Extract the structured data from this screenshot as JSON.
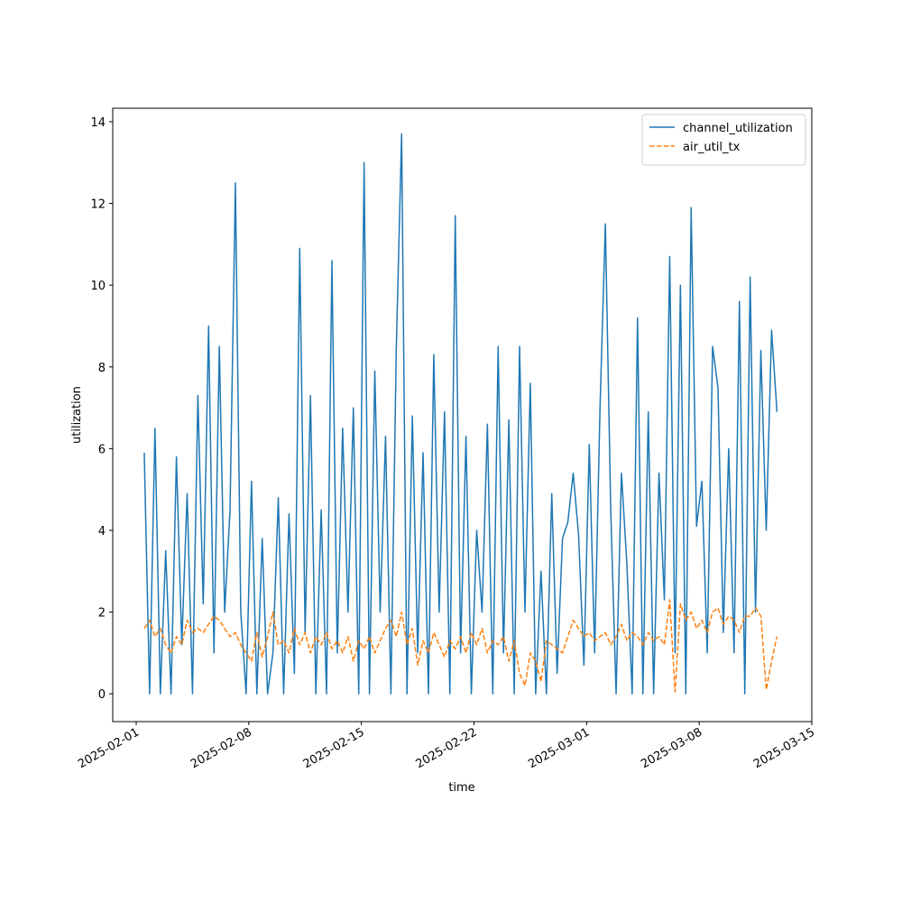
{
  "chart_data": {
    "type": "line",
    "x_label": "time",
    "y_label": "utilization",
    "x": [
      "2025-02-01T12:00",
      "2025-02-01T20:00",
      "2025-02-02T04:00",
      "2025-02-02T12:00",
      "2025-02-02T20:00",
      "2025-02-03T04:00",
      "2025-02-03T12:00",
      "2025-02-03T20:00",
      "2025-02-04T04:00",
      "2025-02-04T12:00",
      "2025-02-04T20:00",
      "2025-02-05T04:00",
      "2025-02-05T12:00",
      "2025-02-05T20:00",
      "2025-02-06T04:00",
      "2025-02-06T12:00",
      "2025-02-06T20:00",
      "2025-02-07T04:00",
      "2025-02-07T12:00",
      "2025-02-07T20:00",
      "2025-02-08T04:00",
      "2025-02-08T12:00",
      "2025-02-08T20:00",
      "2025-02-09T04:00",
      "2025-02-09T12:00",
      "2025-02-09T20:00",
      "2025-02-10T04:00",
      "2025-02-10T12:00",
      "2025-02-10T20:00",
      "2025-02-11T04:00",
      "2025-02-11T12:00",
      "2025-02-11T20:00",
      "2025-02-12T04:00",
      "2025-02-12T12:00",
      "2025-02-12T20:00",
      "2025-02-13T04:00",
      "2025-02-13T12:00",
      "2025-02-13T20:00",
      "2025-02-14T04:00",
      "2025-02-14T12:00",
      "2025-02-14T20:00",
      "2025-02-15T04:00",
      "2025-02-15T12:00",
      "2025-02-15T20:00",
      "2025-02-16T04:00",
      "2025-02-16T12:00",
      "2025-02-16T20:00",
      "2025-02-17T04:00",
      "2025-02-17T12:00",
      "2025-02-17T20:00",
      "2025-02-18T04:00",
      "2025-02-18T12:00",
      "2025-02-18T20:00",
      "2025-02-19T04:00",
      "2025-02-19T12:00",
      "2025-02-19T20:00",
      "2025-02-20T04:00",
      "2025-02-20T12:00",
      "2025-02-20T20:00",
      "2025-02-21T04:00",
      "2025-02-21T12:00",
      "2025-02-21T20:00",
      "2025-02-22T04:00",
      "2025-02-22T12:00",
      "2025-02-22T20:00",
      "2025-02-23T04:00",
      "2025-02-23T12:00",
      "2025-02-23T20:00",
      "2025-02-24T04:00",
      "2025-02-24T12:00",
      "2025-02-24T20:00",
      "2025-02-25T04:00",
      "2025-02-25T12:00",
      "2025-02-25T20:00",
      "2025-02-26T04:00",
      "2025-02-26T12:00",
      "2025-02-26T20:00",
      "2025-02-27T04:00",
      "2025-02-27T12:00",
      "2025-02-27T20:00",
      "2025-02-28T04:00",
      "2025-02-28T12:00",
      "2025-02-28T20:00",
      "2025-03-01T04:00",
      "2025-03-01T12:00",
      "2025-03-01T20:00",
      "2025-03-02T04:00",
      "2025-03-02T12:00",
      "2025-03-02T20:00",
      "2025-03-03T04:00",
      "2025-03-03T12:00",
      "2025-03-03T20:00",
      "2025-03-04T04:00",
      "2025-03-04T12:00",
      "2025-03-04T20:00",
      "2025-03-05T04:00",
      "2025-03-05T12:00",
      "2025-03-05T20:00",
      "2025-03-06T04:00",
      "2025-03-06T12:00",
      "2025-03-06T20:00",
      "2025-03-07T04:00",
      "2025-03-07T12:00",
      "2025-03-07T20:00",
      "2025-03-08T04:00",
      "2025-03-08T12:00",
      "2025-03-08T20:00",
      "2025-03-09T04:00",
      "2025-03-09T12:00",
      "2025-03-09T20:00",
      "2025-03-10T04:00",
      "2025-03-10T12:00",
      "2025-03-10T20:00",
      "2025-03-11T04:00",
      "2025-03-11T12:00",
      "2025-03-11T20:00",
      "2025-03-12T04:00",
      "2025-03-12T12:00",
      "2025-03-12T20:00"
    ],
    "series": [
      {
        "name": "channel_utilization",
        "color": "#1f77b4",
        "linestyle": "solid",
        "values": [
          5.9,
          0,
          6.5,
          0,
          3.5,
          0,
          5.8,
          1.2,
          4.9,
          0,
          7.3,
          2.2,
          9.0,
          1.0,
          8.5,
          2.0,
          4.5,
          12.5,
          2.0,
          0,
          5.2,
          0,
          3.8,
          0,
          1.0,
          4.8,
          0,
          4.4,
          0.5,
          10.9,
          1.5,
          7.3,
          0,
          4.5,
          0,
          10.6,
          1.0,
          6.5,
          2.0,
          7.0,
          0,
          13.0,
          0,
          7.9,
          2.0,
          6.3,
          0,
          8.4,
          13.7,
          0,
          6.8,
          1.0,
          5.9,
          0,
          8.3,
          2.0,
          6.9,
          0,
          11.7,
          1.0,
          6.3,
          0,
          4.0,
          2.0,
          6.6,
          0,
          8.5,
          1.0,
          6.7,
          0,
          8.5,
          2.0,
          7.6,
          0,
          3.0,
          0,
          4.9,
          0.5,
          3.8,
          4.2,
          5.4,
          3.9,
          0.7,
          6.1,
          1.0,
          7.0,
          11.5,
          4.5,
          0,
          5.4,
          3.2,
          0,
          9.2,
          0,
          6.9,
          0,
          5.4,
          2.3,
          10.7,
          1.0,
          10.0,
          0,
          11.9,
          4.1,
          5.2,
          1.0,
          8.5,
          7.5,
          1.5,
          6.0,
          1.0,
          9.6,
          0,
          10.2,
          2.0,
          8.4,
          4.0,
          8.9,
          6.9
        ]
      },
      {
        "name": "air_util_tx",
        "color": "#ff7f0e",
        "linestyle": "dashed",
        "values": [
          1.6,
          1.8,
          1.4,
          1.6,
          1.2,
          1.0,
          1.4,
          1.2,
          1.8,
          1.5,
          1.6,
          1.5,
          1.7,
          1.9,
          1.8,
          1.6,
          1.4,
          1.5,
          1.2,
          1.0,
          0.8,
          1.5,
          0.9,
          1.4,
          2.0,
          1.2,
          1.3,
          1.0,
          1.6,
          1.2,
          1.5,
          1.0,
          1.4,
          1.2,
          1.5,
          1.1,
          1.3,
          1.0,
          1.4,
          0.8,
          1.3,
          1.1,
          1.4,
          1.0,
          1.3,
          1.6,
          1.8,
          1.4,
          2.0,
          1.2,
          1.6,
          0.7,
          1.3,
          1.0,
          1.5,
          1.2,
          0.9,
          1.3,
          1.1,
          1.4,
          1.0,
          1.5,
          1.2,
          1.6,
          1.0,
          1.3,
          1.2,
          1.4,
          0.8,
          1.3,
          0.5,
          0.2,
          1.0,
          0.8,
          0.3,
          1.3,
          1.2,
          1.1,
          1.0,
          1.4,
          1.8,
          1.6,
          1.4,
          1.5,
          1.3,
          1.4,
          1.5,
          1.2,
          1.4,
          1.7,
          1.3,
          1.5,
          1.4,
          1.2,
          1.5,
          1.3,
          1.4,
          1.2,
          2.3,
          0.05,
          2.2,
          1.8,
          2.0,
          1.6,
          1.8,
          1.5,
          2.0,
          2.1,
          1.7,
          1.9,
          1.8,
          1.5,
          1.9,
          1.9,
          2.1,
          1.9,
          0.1,
          0.8,
          1.4
        ]
      }
    ],
    "xlim": [
      "2025-01-30T13:00",
      "2025-03-15T00:00"
    ],
    "xticks": [
      "2025-02-01",
      "2025-02-08",
      "2025-02-15",
      "2025-02-22",
      "2025-03-01",
      "2025-03-08",
      "2025-03-15"
    ],
    "ylim": [
      -0.68,
      14.33
    ],
    "yticks": [
      0,
      2,
      4,
      6,
      8,
      10,
      12,
      14
    ],
    "legend": "upper right"
  }
}
